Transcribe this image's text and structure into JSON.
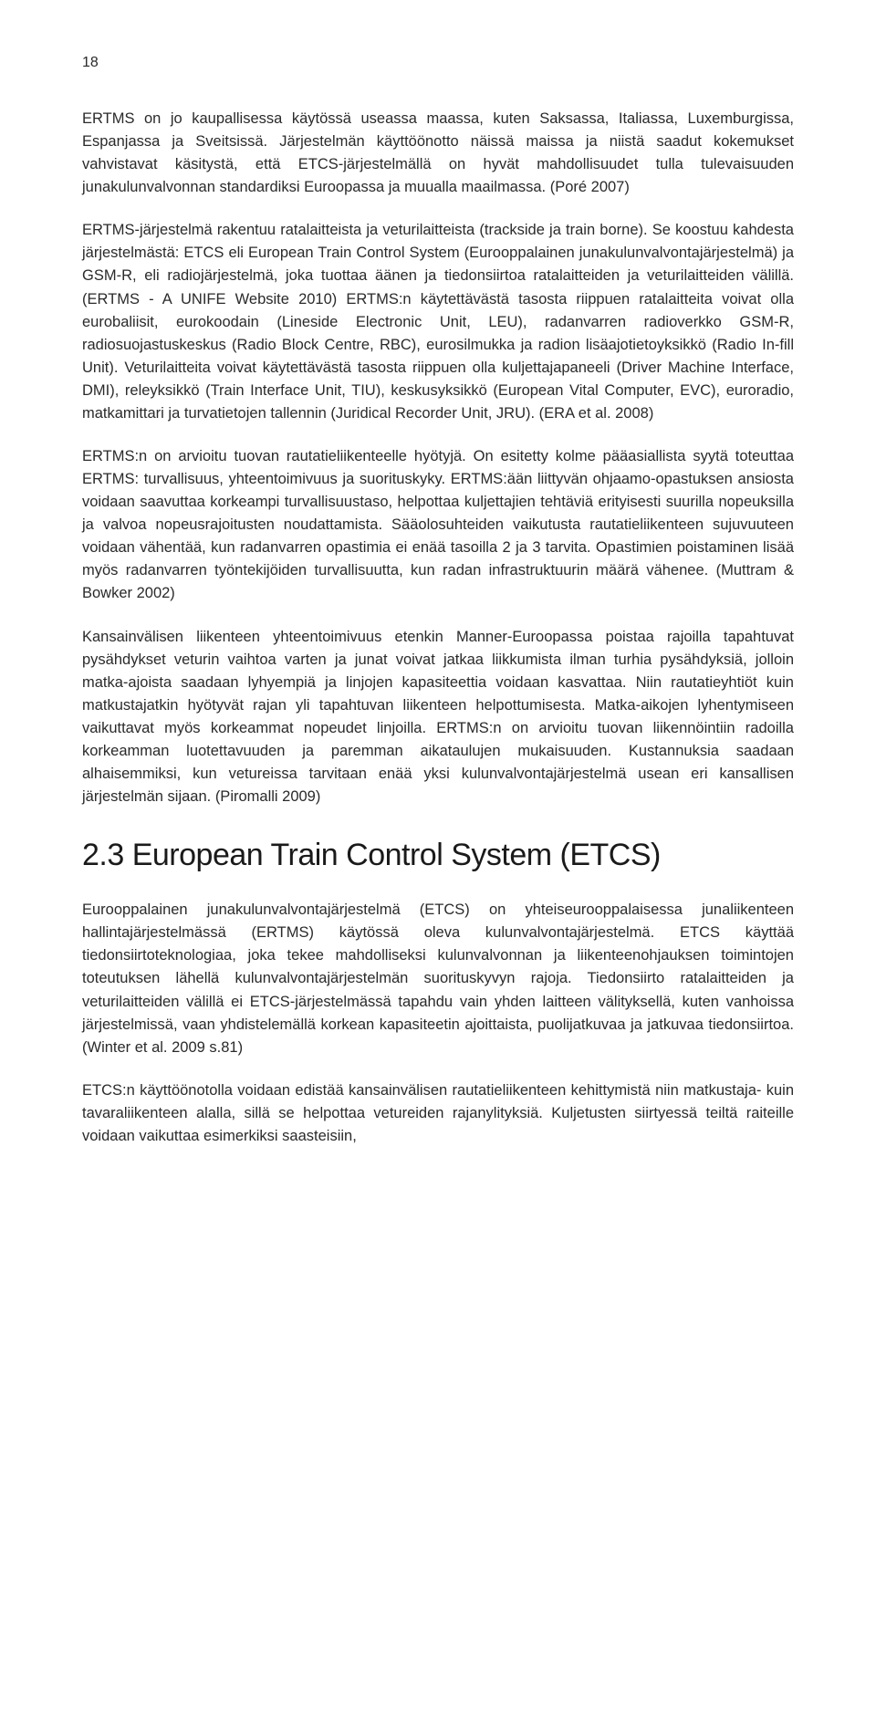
{
  "pageNumber": "18",
  "paragraphs": {
    "p1": "ERTMS on jo kaupallisessa käytössä useassa maassa, kuten Saksassa, Italiassa, Luxemburgissa, Espanjassa ja Sveitsissä. Järjestelmän käyttöönotto näissä maissa ja niistä saadut kokemukset vahvistavat käsitystä, että ETCS-järjestelmällä on hyvät mahdollisuudet tulla tulevaisuuden junakulunvalvonnan standardiksi Euroopassa ja muualla maailmassa. (Poré 2007)",
    "p2": "ERTMS-järjestelmä rakentuu ratalaitteista ja veturilaitteista (trackside ja train borne). Se koostuu kahdesta järjestelmästä: ETCS eli European Train Control System (Eurooppalainen junakulunvalvontajärjestelmä) ja GSM-R, eli radiojärjestelmä, joka tuottaa äänen ja tiedonsiirtoa ratalaitteiden ja veturilaitteiden välillä. (ERTMS - A UNIFE Website 2010) ERTMS:n käytettävästä tasosta riippuen ratalaitteita voivat olla eurobaliisit, eurokoodain (Lineside Electronic Unit, LEU), radanvarren radioverkko GSM-R, radiosuojastuskeskus (Radio Block Centre, RBC), eurosilmukka ja radion lisäajotietoyksikkö (Radio In-fill Unit). Veturilaitteita voivat käytettävästä tasosta riippuen olla kuljettajapaneeli (Driver Machine Interface, DMI), releyksikkö (Train Interface Unit, TIU), keskusyksikkö (European Vital Computer, EVC), euroradio, matkamittari ja turvatietojen tallennin (Juridical Recorder Unit, JRU). (ERA et al. 2008)",
    "p3": "ERTMS:n on arvioitu tuovan rautatieliikenteelle hyötyjä. On esitetty kolme pääasiallista syytä toteuttaa ERTMS: turvallisuus, yhteentoimivuus ja suorituskyky. ERTMS:ään liittyvän ohjaamo-opastuksen ansiosta voidaan saavuttaa korkeampi turvallisuustaso, helpottaa kuljettajien tehtäviä erityisesti suurilla nopeuksilla ja valvoa nopeusrajoitusten noudattamista. Sääolosuhteiden vaikutusta rautatieliikenteen sujuvuuteen voidaan vähentää, kun radanvarren opastimia ei enää tasoilla 2 ja 3 tarvita. Opastimien poistaminen lisää myös radanvarren työntekijöiden turvallisuutta, kun radan infrastruktuurin määrä vähenee. (Muttram & Bowker 2002)",
    "p4": "Kansainvälisen liikenteen yhteentoimivuus etenkin Manner-Euroopassa poistaa rajoilla tapahtuvat pysähdykset veturin vaihtoa varten ja junat voivat jatkaa liikkumista ilman turhia pysähdyksiä, jolloin matka-ajoista saadaan lyhyempiä ja linjojen kapasiteettia voidaan kasvattaa. Niin rautatieyhtiöt kuin matkustajatkin hyötyvät rajan yli tapahtuvan liikenteen helpottumisesta. Matka-aikojen lyhentymiseen vaikuttavat myös korkeammat nopeudet linjoilla. ERTMS:n on arvioitu tuovan liikennöintiin radoilla korkeamman luotettavuuden ja paremman aikataulujen mukaisuuden. Kustannuksia saadaan alhaisemmiksi, kun vetureissa tarvitaan enää yksi kulunvalvontajärjestelmä usean eri kansallisen järjestelmän sijaan. (Piromalli 2009)",
    "p5": "Eurooppalainen junakulunvalvontajärjestelmä (ETCS) on yhteiseurooppalaisessa junaliikenteen hallintajärjestelmässä (ERTMS) käytössä oleva kulunvalvontajärjestelmä. ETCS käyttää tiedonsiirtoteknologiaa, joka tekee mahdolliseksi kulunvalvonnan ja liikenteenohjauksen toimintojen toteutuksen lähellä kulunvalvontajärjestelmän suorituskyvyn rajoja. Tiedonsiirto ratalaitteiden ja veturilaitteiden välillä ei ETCS-järjestelmässä tapahdu vain yhden laitteen välityksellä, kuten vanhoissa järjestelmissä, vaan yhdistelemällä korkean kapasiteetin ajoittaista, puolijatkuvaa ja jatkuvaa tiedonsiirtoa. (Winter et al. 2009 s.81)",
    "p6": "ETCS:n käyttöönotolla voidaan edistää kansainvälisen rautatieliikenteen kehittymistä niin matkustaja- kuin tavaraliikenteen alalla, sillä se helpottaa vetureiden rajanylityksiä. Kuljetusten siirtyessä teiltä raiteille voidaan vaikuttaa esimerkiksi saasteisiin,"
  },
  "sectionHeading": "2.3 European Train Control System (ETCS)",
  "style": {
    "backgroundColor": "#ffffff",
    "textColor": "#2a2a2a",
    "headingColor": "#1a1a1a",
    "bodyFontSize": 16.5,
    "headingFontSize": 34,
    "lineHeight": 1.52,
    "textAlign": "justify",
    "pageWidth": 960,
    "pageHeight": 1896
  }
}
